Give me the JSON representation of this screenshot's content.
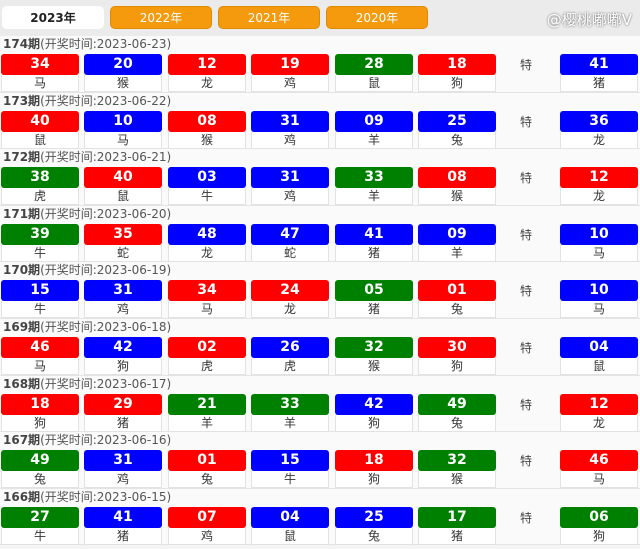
{
  "tabs": [
    {
      "label": "2023年",
      "active": true
    },
    {
      "label": "2022年"
    },
    {
      "label": "2021年"
    },
    {
      "label": "2020年"
    }
  ],
  "colors": {
    "red": "#ff0000",
    "blue": "#0000ff",
    "green": "#008000"
  },
  "special_label": "特",
  "draws": [
    {
      "period": "174期",
      "time": "(开奖时间:2023-06-23)",
      "balls": [
        [
          "34",
          "red",
          "马"
        ],
        [
          "20",
          "blue",
          "猴"
        ],
        [
          "12",
          "red",
          "龙"
        ],
        [
          "19",
          "red",
          "鸡"
        ],
        [
          "28",
          "green",
          "鼠"
        ],
        [
          "18",
          "red",
          "狗"
        ]
      ],
      "special": [
        "41",
        "blue",
        "猪"
      ]
    },
    {
      "period": "173期",
      "time": "(开奖时间:2023-06-22)",
      "balls": [
        [
          "40",
          "red",
          "鼠"
        ],
        [
          "10",
          "blue",
          "马"
        ],
        [
          "08",
          "red",
          "猴"
        ],
        [
          "31",
          "blue",
          "鸡"
        ],
        [
          "09",
          "blue",
          "羊"
        ],
        [
          "25",
          "blue",
          "兔"
        ]
      ],
      "special": [
        "36",
        "blue",
        "龙"
      ]
    },
    {
      "period": "172期",
      "time": "(开奖时间:2023-06-21)",
      "balls": [
        [
          "38",
          "green",
          "虎"
        ],
        [
          "40",
          "red",
          "鼠"
        ],
        [
          "03",
          "blue",
          "牛"
        ],
        [
          "31",
          "blue",
          "鸡"
        ],
        [
          "33",
          "green",
          "羊"
        ],
        [
          "08",
          "red",
          "猴"
        ]
      ],
      "special": [
        "12",
        "red",
        "龙"
      ]
    },
    {
      "period": "171期",
      "time": "(开奖时间:2023-06-20)",
      "balls": [
        [
          "39",
          "green",
          "牛"
        ],
        [
          "35",
          "red",
          "蛇"
        ],
        [
          "48",
          "blue",
          "龙"
        ],
        [
          "47",
          "blue",
          "蛇"
        ],
        [
          "41",
          "blue",
          "猪"
        ],
        [
          "09",
          "blue",
          "羊"
        ]
      ],
      "special": [
        "10",
        "blue",
        "马"
      ]
    },
    {
      "period": "170期",
      "time": "(开奖时间:2023-06-19)",
      "balls": [
        [
          "15",
          "blue",
          "牛"
        ],
        [
          "31",
          "blue",
          "鸡"
        ],
        [
          "34",
          "red",
          "马"
        ],
        [
          "24",
          "red",
          "龙"
        ],
        [
          "05",
          "green",
          "猪"
        ],
        [
          "01",
          "red",
          "兔"
        ]
      ],
      "special": [
        "10",
        "blue",
        "马"
      ]
    },
    {
      "period": "169期",
      "time": "(开奖时间:2023-06-18)",
      "balls": [
        [
          "46",
          "red",
          "马"
        ],
        [
          "42",
          "blue",
          "狗"
        ],
        [
          "02",
          "red",
          "虎"
        ],
        [
          "26",
          "blue",
          "虎"
        ],
        [
          "32",
          "green",
          "猴"
        ],
        [
          "30",
          "red",
          "狗"
        ]
      ],
      "special": [
        "04",
        "blue",
        "鼠"
      ]
    },
    {
      "period": "168期",
      "time": "(开奖时间:2023-06-17)",
      "balls": [
        [
          "18",
          "red",
          "狗"
        ],
        [
          "29",
          "red",
          "猪"
        ],
        [
          "21",
          "green",
          "羊"
        ],
        [
          "33",
          "green",
          "羊"
        ],
        [
          "42",
          "blue",
          "狗"
        ],
        [
          "49",
          "green",
          "兔"
        ]
      ],
      "special": [
        "12",
        "red",
        "龙"
      ]
    },
    {
      "period": "167期",
      "time": "(开奖时间:2023-06-16)",
      "balls": [
        [
          "49",
          "green",
          "兔"
        ],
        [
          "31",
          "blue",
          "鸡"
        ],
        [
          "01",
          "red",
          "兔"
        ],
        [
          "15",
          "blue",
          "牛"
        ],
        [
          "18",
          "red",
          "狗"
        ],
        [
          "32",
          "green",
          "猴"
        ]
      ],
      "special": [
        "46",
        "red",
        "马"
      ]
    },
    {
      "period": "166期",
      "time": "(开奖时间:2023-06-15)",
      "balls": [
        [
          "27",
          "green",
          "牛"
        ],
        [
          "41",
          "blue",
          "猪"
        ],
        [
          "07",
          "red",
          "鸡"
        ],
        [
          "04",
          "blue",
          "鼠"
        ],
        [
          "25",
          "blue",
          "兔"
        ],
        [
          "17",
          "green",
          "猪"
        ]
      ],
      "special": [
        "06",
        "green",
        "狗"
      ]
    }
  ],
  "watermark": "@樱桃嘟嘟V"
}
